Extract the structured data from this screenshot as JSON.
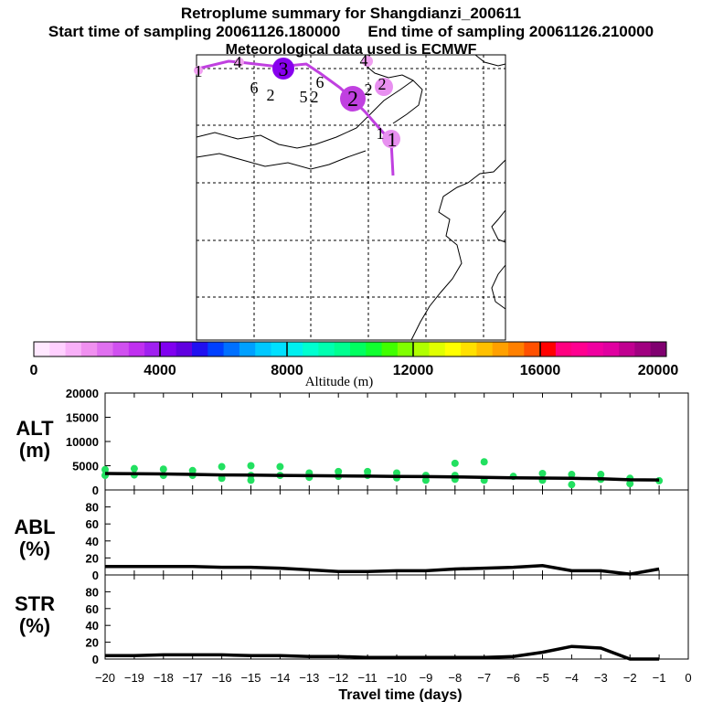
{
  "header": {
    "title": "Retroplume summary for Shangdianzi_200611",
    "start_sampling": "Start time of sampling 20061126.180000",
    "end_sampling": "End time of sampling 20061126.210000",
    "met_data": "Meteorological data used is ECMWF"
  },
  "map": {
    "trajectory_color": "#c040e0",
    "labels": [
      "1",
      "4",
      "3",
      "4",
      "6",
      "2",
      "6",
      "5",
      "2",
      "2",
      "2",
      "2",
      "1",
      "1"
    ]
  },
  "colorbar": {
    "title": "Altitude (m)",
    "ticks": [
      "0",
      "4000",
      "8000",
      "12000",
      "16000",
      "20000"
    ],
    "colors": [
      "#ffe8ff",
      "#ffd0ff",
      "#f8b0f8",
      "#f090f0",
      "#e070f0",
      "#d050f0",
      "#c030f0",
      "#a020f0",
      "#8000f0",
      "#6000e0",
      "#2010f0",
      "#0040ff",
      "#0070ff",
      "#00a0ff",
      "#00c8ff",
      "#00e0ff",
      "#00f0f0",
      "#00ffd0",
      "#00ffb0",
      "#00ff90",
      "#00ff60",
      "#10ff30",
      "#40ff00",
      "#80ff00",
      "#b0ff00",
      "#e0ff00",
      "#ffff00",
      "#ffe000",
      "#ffc000",
      "#ffa000",
      "#ff8000",
      "#ff5000",
      "#ff0000",
      "#ff0080",
      "#ff0090",
      "#f000a0",
      "#e000a0",
      "#c00090",
      "#a00080",
      "#800070"
    ]
  },
  "chart_data": [
    {
      "type": "line",
      "panel": "ALT",
      "ylabel": "ALT (m)",
      "ylim": [
        0,
        20000
      ],
      "yticks": [
        "0",
        "5000",
        "10000",
        "15000",
        "20000"
      ],
      "x": [
        -20,
        -19,
        -18,
        -17,
        -16,
        -15,
        -14,
        -13,
        -12,
        -11,
        -10,
        -9,
        -8,
        -7,
        -6,
        -5,
        -4,
        -3,
        -2,
        -1
      ],
      "series": [
        {
          "name": "mean altitude",
          "values": [
            3400,
            3350,
            3300,
            3200,
            3100,
            3050,
            3000,
            2950,
            2900,
            2850,
            2800,
            2750,
            2700,
            2600,
            2500,
            2450,
            2400,
            2300,
            2100,
            2050
          ]
        }
      ],
      "plume_points": [
        {
          "x": -20,
          "y": 4200
        },
        {
          "x": -20,
          "y": 3000
        },
        {
          "x": -19,
          "y": 4400
        },
        {
          "x": -19,
          "y": 3100
        },
        {
          "x": -18,
          "y": 4300
        },
        {
          "x": -18,
          "y": 3000
        },
        {
          "x": -17,
          "y": 4000
        },
        {
          "x": -17,
          "y": 3000
        },
        {
          "x": -16,
          "y": 4800
        },
        {
          "x": -16,
          "y": 2400
        },
        {
          "x": -15,
          "y": 5000
        },
        {
          "x": -15,
          "y": 3000
        },
        {
          "x": -15,
          "y": 2000
        },
        {
          "x": -14,
          "y": 4800
        },
        {
          "x": -14,
          "y": 3000
        },
        {
          "x": -13,
          "y": 3500
        },
        {
          "x": -13,
          "y": 2600
        },
        {
          "x": -12,
          "y": 3800
        },
        {
          "x": -12,
          "y": 2800
        },
        {
          "x": -11,
          "y": 3800
        },
        {
          "x": -11,
          "y": 3000
        },
        {
          "x": -10,
          "y": 3500
        },
        {
          "x": -10,
          "y": 2500
        },
        {
          "x": -9,
          "y": 3000
        },
        {
          "x": -9,
          "y": 2000
        },
        {
          "x": -8,
          "y": 5500
        },
        {
          "x": -8,
          "y": 3000
        },
        {
          "x": -8,
          "y": 2200
        },
        {
          "x": -7,
          "y": 5800
        },
        {
          "x": -7,
          "y": 2000
        },
        {
          "x": -6,
          "y": 2800
        },
        {
          "x": -5,
          "y": 3400
        },
        {
          "x": -5,
          "y": 2000
        },
        {
          "x": -4,
          "y": 3200
        },
        {
          "x": -4,
          "y": 1100
        },
        {
          "x": -3,
          "y": 3200
        },
        {
          "x": -3,
          "y": 2200
        },
        {
          "x": -2,
          "y": 2400
        },
        {
          "x": -2,
          "y": 1300
        },
        {
          "x": -1,
          "y": 1900
        }
      ]
    },
    {
      "type": "line",
      "panel": "ABL",
      "ylabel": "ABL (%)",
      "ylim": [
        0,
        100
      ],
      "yticks": [
        "0",
        "20",
        "40",
        "60",
        "80"
      ],
      "x": [
        -20,
        -19,
        -18,
        -17,
        -16,
        -15,
        -14,
        -13,
        -12,
        -11,
        -10,
        -9,
        -8,
        -7,
        -6,
        -5,
        -4,
        -3,
        -2,
        -1
      ],
      "series": [
        {
          "name": "ABL fraction",
          "values": [
            10,
            10,
            10,
            10,
            9,
            9,
            8,
            6,
            4,
            4,
            5,
            5,
            7,
            8,
            9,
            11,
            5,
            5,
            1,
            7
          ]
        }
      ]
    },
    {
      "type": "line",
      "panel": "STR",
      "ylabel": "STR (%)",
      "ylim": [
        0,
        100
      ],
      "yticks": [
        "0",
        "20",
        "40",
        "60",
        "80"
      ],
      "xlabel": "Travel time (days)",
      "xticks": [
        "−20",
        "−19",
        "−18",
        "−17",
        "−16",
        "−15",
        "−14",
        "−13",
        "−12",
        "−11",
        "−10",
        "−9",
        "−8",
        "−7",
        "−6",
        "−5",
        "−4",
        "−3",
        "−2",
        "−1",
        "0"
      ],
      "x": [
        -20,
        -19,
        -18,
        -17,
        -16,
        -15,
        -14,
        -13,
        -12,
        -11,
        -10,
        -9,
        -8,
        -7,
        -6,
        -5,
        -4,
        -3,
        -2,
        -1
      ],
      "series": [
        {
          "name": "stratosphere fraction",
          "values": [
            4,
            4,
            5,
            5,
            5,
            4,
            4,
            3,
            3,
            2,
            2,
            2,
            2,
            2,
            3,
            8,
            15,
            13,
            0,
            0
          ]
        }
      ]
    }
  ],
  "panels": {
    "alt_label_1": "ALT",
    "alt_label_2": "(m)",
    "abl_label_1": "ABL",
    "abl_label_2": "(%)",
    "str_label_1": "STR",
    "str_label_2": "(%)"
  }
}
